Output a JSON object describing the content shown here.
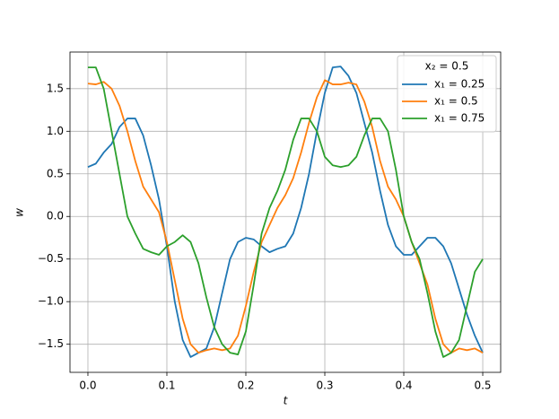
{
  "chart_data": {
    "type": "line",
    "x_label": "t",
    "y_label": "w",
    "x": [
      0,
      0.01,
      0.02,
      0.03,
      0.04,
      0.05,
      0.06,
      0.07,
      0.08,
      0.09,
      0.1,
      0.11,
      0.12,
      0.13,
      0.14,
      0.15,
      0.16,
      0.17,
      0.18,
      0.19,
      0.2,
      0.21,
      0.22,
      0.23,
      0.24,
      0.25,
      0.26,
      0.27,
      0.28,
      0.29,
      0.3,
      0.31,
      0.32,
      0.33,
      0.34,
      0.35,
      0.36,
      0.37,
      0.38,
      0.39,
      0.4,
      0.41,
      0.42,
      0.43,
      0.44,
      0.45,
      0.46,
      0.47,
      0.48,
      0.49,
      0.5
    ],
    "series": [
      {
        "name": "x₁ = 0.25",
        "color": "#1f77b4",
        "values": [
          0.58,
          0.62,
          0.75,
          0.85,
          1.05,
          1.15,
          1.15,
          0.95,
          0.6,
          0.2,
          -0.35,
          -1.0,
          -1.45,
          -1.65,
          -1.6,
          -1.55,
          -1.3,
          -0.9,
          -0.5,
          -0.3,
          -0.25,
          -0.27,
          -0.35,
          -0.42,
          -0.38,
          -0.35,
          -0.2,
          0.1,
          0.5,
          1.0,
          1.45,
          1.75,
          1.76,
          1.65,
          1.45,
          1.1,
          0.75,
          0.3,
          -0.1,
          -0.35,
          -0.45,
          -0.45,
          -0.35,
          -0.25,
          -0.25,
          -0.35,
          -0.55,
          -0.85,
          -1.15,
          -1.4,
          -1.6
        ]
      },
      {
        "name": "x₁ = 0.5",
        "color": "#ff7f0e",
        "values": [
          1.56,
          1.55,
          1.58,
          1.5,
          1.3,
          1.0,
          0.65,
          0.35,
          0.2,
          0.05,
          -0.3,
          -0.75,
          -1.2,
          -1.5,
          -1.6,
          -1.57,
          -1.55,
          -1.57,
          -1.55,
          -1.4,
          -1.05,
          -0.65,
          -0.3,
          -0.1,
          0.1,
          0.25,
          0.45,
          0.75,
          1.1,
          1.4,
          1.6,
          1.55,
          1.55,
          1.57,
          1.55,
          1.35,
          1.05,
          0.65,
          0.35,
          0.2,
          0.0,
          -0.3,
          -0.55,
          -0.8,
          -1.2,
          -1.5,
          -1.6,
          -1.55,
          -1.57,
          -1.55,
          -1.6
        ]
      },
      {
        "name": "x₁ = 0.75",
        "color": "#2ca02c",
        "values": [
          1.75,
          1.75,
          1.5,
          1.0,
          0.5,
          0.0,
          -0.2,
          -0.38,
          -0.42,
          -0.45,
          -0.35,
          -0.3,
          -0.22,
          -0.3,
          -0.55,
          -0.95,
          -1.3,
          -1.5,
          -1.6,
          -1.62,
          -1.35,
          -0.8,
          -0.2,
          0.1,
          0.3,
          0.55,
          0.9,
          1.15,
          1.15,
          1.0,
          0.7,
          0.6,
          0.58,
          0.6,
          0.7,
          0.95,
          1.15,
          1.15,
          1.0,
          0.55,
          0.0,
          -0.3,
          -0.5,
          -0.9,
          -1.35,
          -1.65,
          -1.6,
          -1.45,
          -1.05,
          -0.65,
          -0.5
        ]
      }
    ],
    "legend_title": "x₂ = 0.5",
    "legend_position": "upper right",
    "xlim": [
      -0.0227,
      0.5227
    ],
    "ylim": [
      -1.83,
      1.93
    ],
    "xticks": [
      {
        "value": 0,
        "label": "0.0"
      },
      0.1,
      0.2,
      0.3,
      0.4,
      0.5
    ],
    "yticks": [
      {
        "value": -1.5,
        "label": "−1.5"
      },
      {
        "value": -1.0,
        "label": "−1.0"
      },
      {
        "value": -0.5,
        "label": "−0.5"
      },
      {
        "value": 0,
        "label": "0.0"
      },
      0.5,
      {
        "value": 1.0,
        "label": "1.0"
      },
      1.5
    ],
    "grid": true
  }
}
